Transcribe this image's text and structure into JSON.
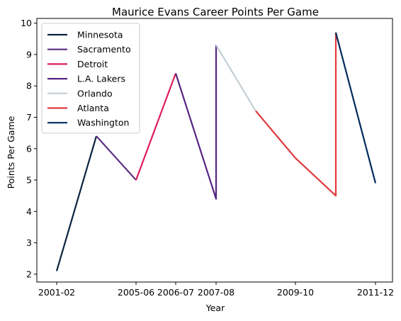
{
  "chart_data": {
    "type": "line",
    "title": "Maurice Evans  Career Points Per Game",
    "xlabel": "Year",
    "ylabel": "Points Per Game",
    "x_tick_labels": [
      "2001-02",
      "2005-06",
      "2006-07",
      "2007-08",
      "2009-10",
      "2011-12"
    ],
    "y_ticks": [
      2,
      3,
      4,
      5,
      6,
      7,
      8,
      9,
      10
    ],
    "ylim": [
      1.75,
      10.15
    ],
    "grid": false,
    "legend_position": "upper-left",
    "series": [
      {
        "name": "Minnesota",
        "color": "#0c2340",
        "points": [
          [
            "2001-02",
            2.1
          ],
          [
            "2004-05",
            6.4
          ]
        ]
      },
      {
        "name": "Sacramento",
        "color": "#5a2d81",
        "points": [
          [
            "2004-05",
            6.4
          ],
          [
            "2005-06",
            5.0
          ]
        ]
      },
      {
        "name": "Detroit",
        "color": "#e01e5a",
        "points": [
          [
            "2005-06",
            5.0
          ],
          [
            "2006-07",
            8.4
          ]
        ]
      },
      {
        "name": "L.A. Lakers",
        "color": "#552583",
        "points": [
          [
            "2006-07",
            8.4
          ],
          [
            "2007-08",
            4.4
          ],
          [
            "2007-08",
            9.3
          ]
        ]
      },
      {
        "name": "Orlando",
        "color": "#c4ced4",
        "points": [
          [
            "2007-08",
            9.3
          ],
          [
            "2008-09",
            7.2
          ]
        ]
      },
      {
        "name": "Atlanta",
        "color": "#e03a3e",
        "points": [
          [
            "2008-09",
            7.2
          ],
          [
            "2009-10",
            5.7
          ],
          [
            "2010-11",
            4.5
          ],
          [
            "2010-11",
            9.7
          ]
        ]
      },
      {
        "name": "Washington",
        "color": "#002b5c",
        "points": [
          [
            "2010-11",
            9.7
          ],
          [
            "2011-12",
            4.9
          ]
        ]
      }
    ]
  }
}
